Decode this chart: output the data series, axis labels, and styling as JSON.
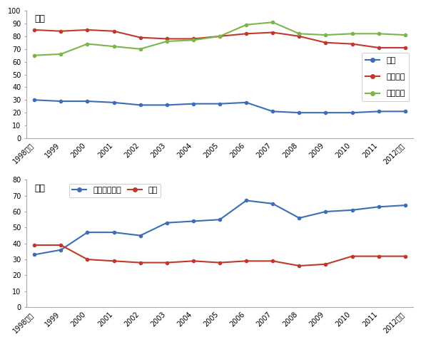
{
  "years": [
    "1998年度",
    "1999",
    "2000",
    "2001",
    "2002",
    "2003",
    "2004",
    "2005",
    "2006",
    "2007",
    "2008",
    "2009",
    "2010",
    "2011",
    "2012年度"
  ],
  "top": {
    "wage": [
      30,
      29,
      29,
      28,
      26,
      26,
      27,
      27,
      28,
      21,
      20,
      20,
      20,
      21,
      21
    ],
    "capex": [
      85,
      84,
      85,
      84,
      79,
      78,
      78,
      80,
      82,
      83,
      80,
      75,
      74,
      71,
      71
    ],
    "retained": [
      65,
      66,
      74,
      72,
      70,
      76,
      77,
      80,
      89,
      91,
      82,
      81,
      82,
      82,
      81
    ],
    "ylabel": "兆円",
    "ylim": [
      0,
      100
    ],
    "yticks": [
      0,
      10,
      20,
      30,
      40,
      50,
      60,
      70,
      80,
      90,
      100
    ],
    "legend": [
      "賃金",
      "設備投資",
      "内部留保"
    ],
    "colors": [
      "#3b6eb4",
      "#c0392b",
      "#7ab648"
    ]
  },
  "bottom": {
    "longstock": [
      33,
      36,
      47,
      47,
      45,
      53,
      54,
      55,
      67,
      65,
      56,
      60,
      61,
      63,
      64
    ],
    "cash": [
      39,
      39,
      30,
      29,
      28,
      28,
      29,
      28,
      29,
      29,
      26,
      27,
      32,
      32,
      32
    ],
    "ylabel": "兆円",
    "ylim": [
      0,
      80
    ],
    "yticks": [
      0,
      10,
      20,
      30,
      40,
      50,
      60,
      70,
      80
    ],
    "legend": [
      "長期保有株式",
      "現金"
    ],
    "colors": [
      "#3b6eb4",
      "#c0392b"
    ]
  }
}
